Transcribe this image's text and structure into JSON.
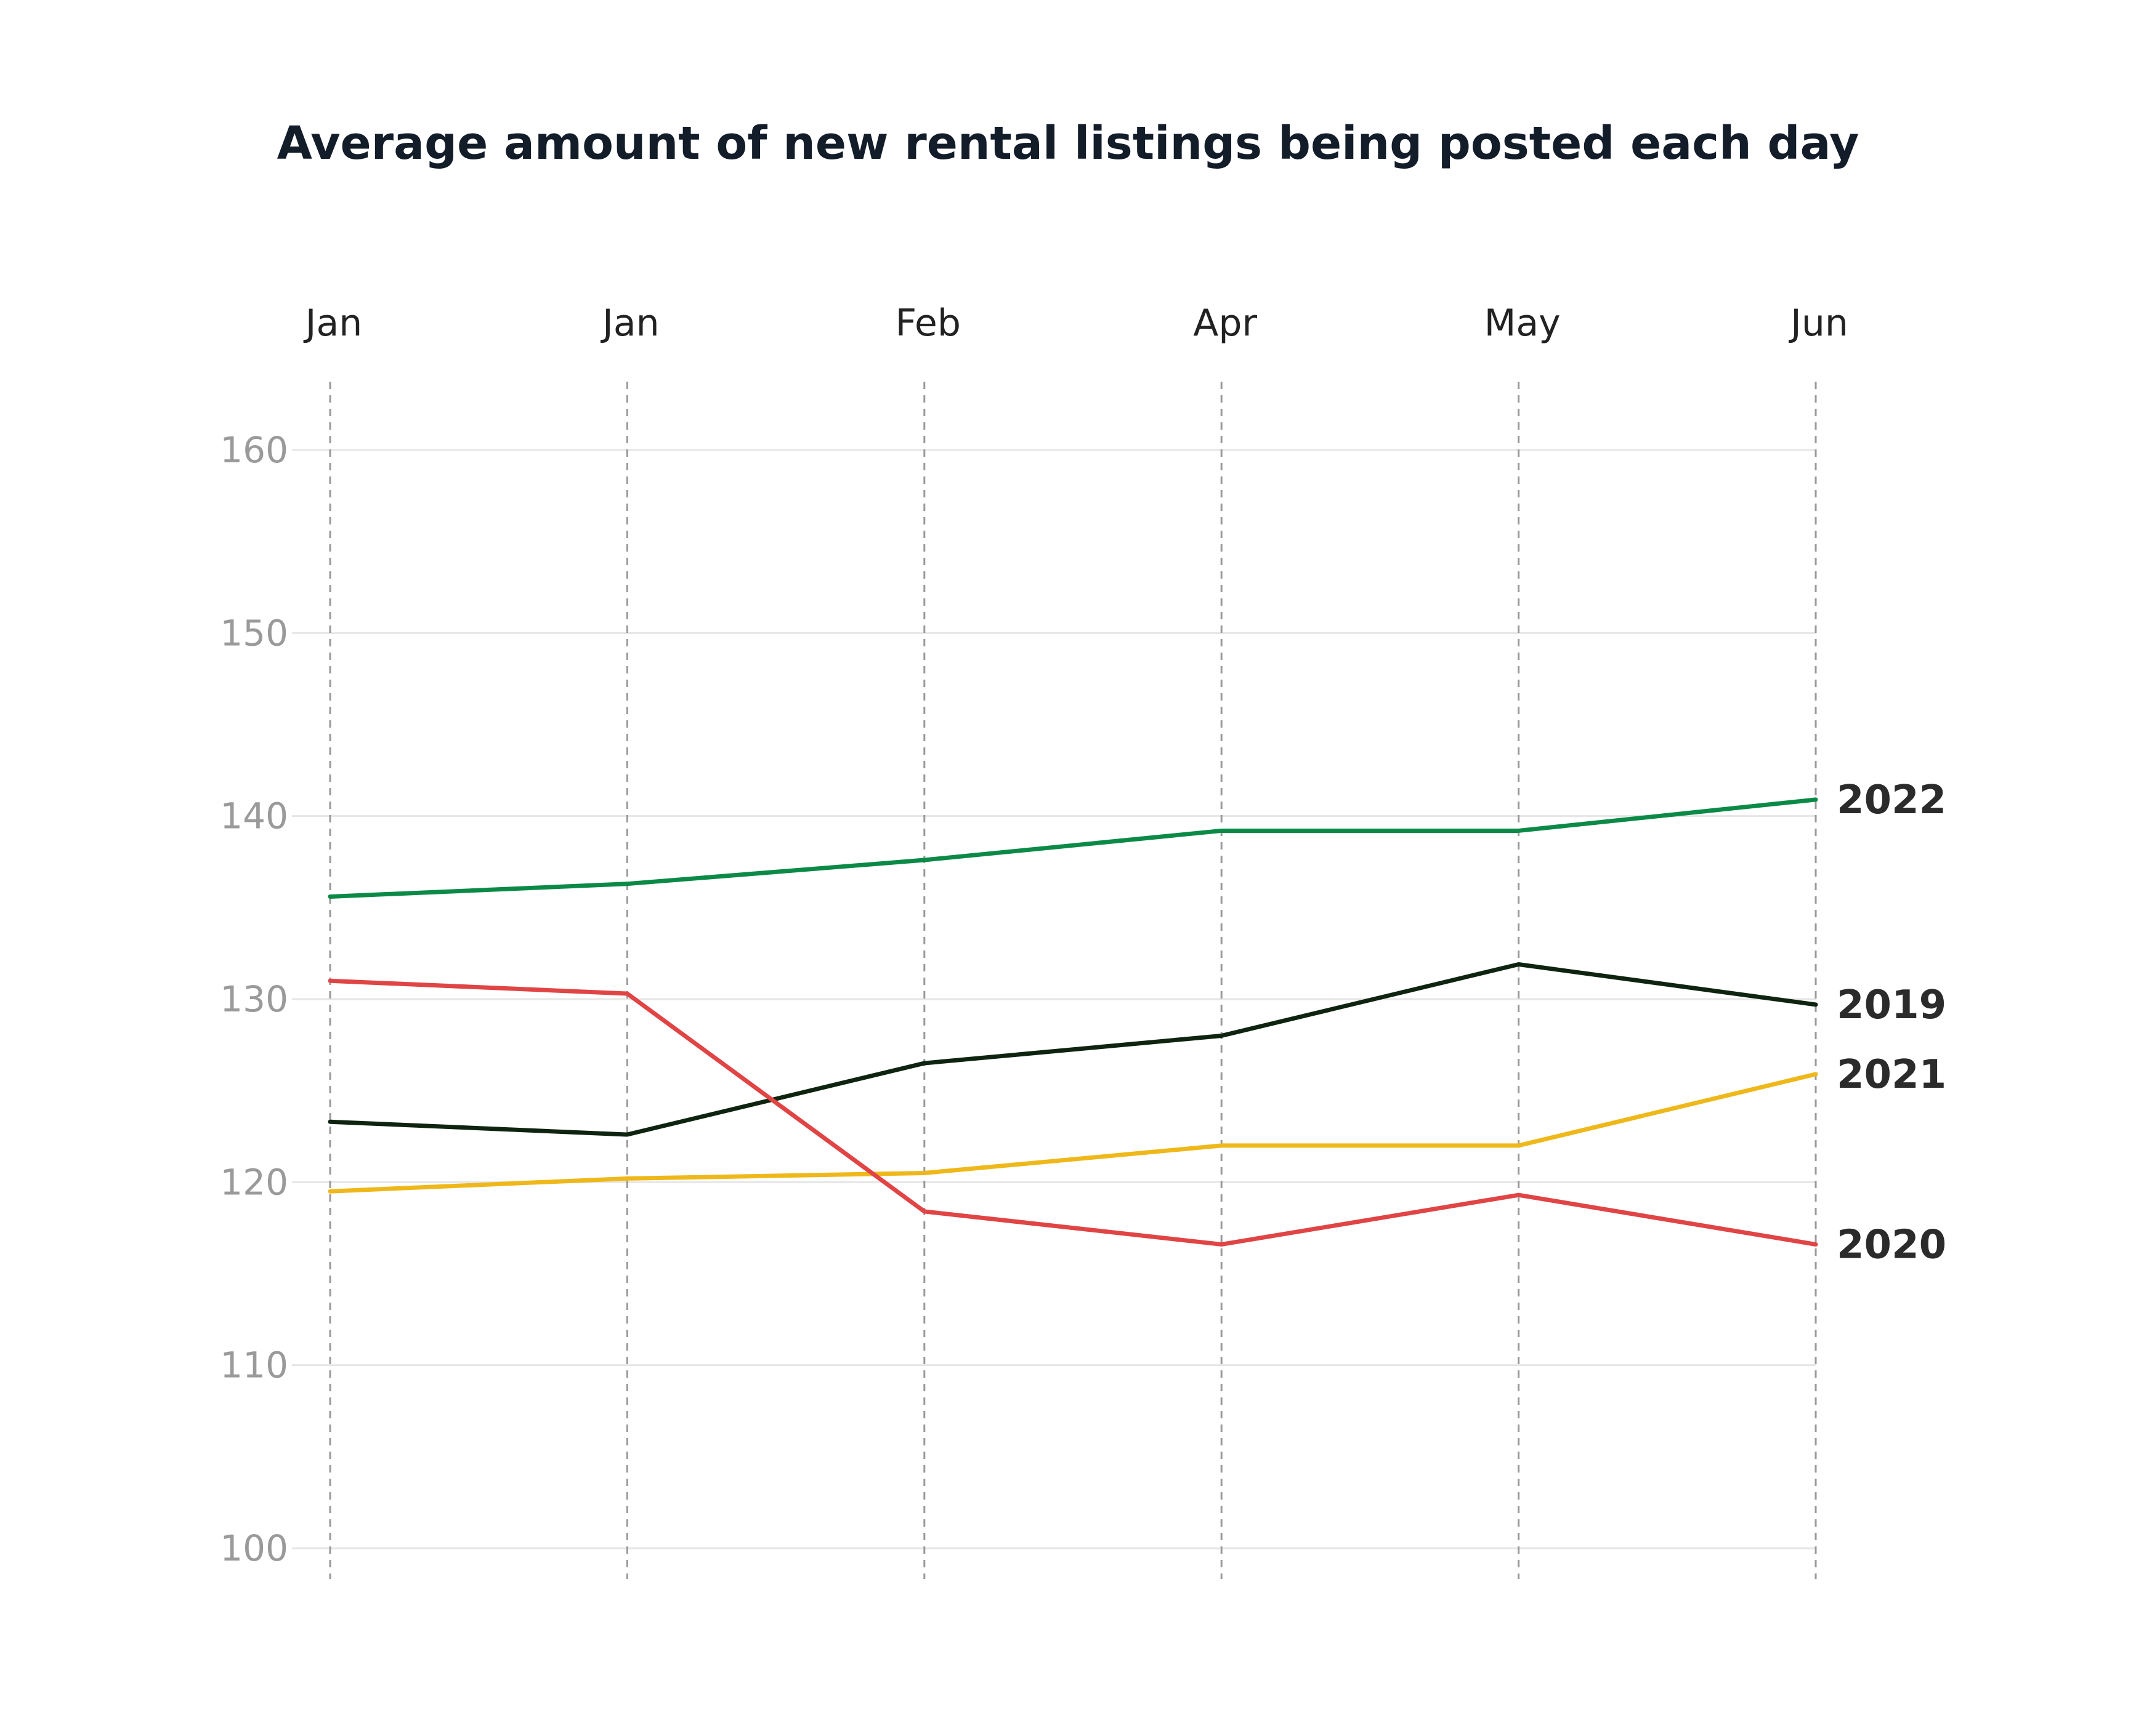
{
  "chart_data": {
    "type": "line",
    "title": "Average amount of new rental listings being posted each day",
    "categories": [
      "Jan",
      "Jan",
      "Feb",
      "Apr",
      "May",
      "Jun"
    ],
    "xlabel": "",
    "ylabel": "",
    "ylim": [
      100,
      160
    ],
    "yticks": [
      100,
      110,
      120,
      130,
      140,
      150,
      160
    ],
    "grid": true,
    "series": [
      {
        "name": "2022",
        "color": "#0b8a47",
        "values": [
          135.6,
          136.3,
          137.6,
          139.2,
          139.2,
          140.9
        ]
      },
      {
        "name": "2019",
        "color": "#0f2410",
        "values": [
          123.3,
          122.6,
          126.5,
          128.0,
          131.9,
          129.7
        ]
      },
      {
        "name": "2021",
        "color": "#efb81a",
        "values": [
          119.5,
          120.2,
          120.5,
          122.0,
          122.0,
          125.9
        ]
      },
      {
        "name": "2020",
        "color": "#e04444",
        "values": [
          131.0,
          130.3,
          118.4,
          116.6,
          119.3,
          116.6
        ]
      }
    ]
  }
}
